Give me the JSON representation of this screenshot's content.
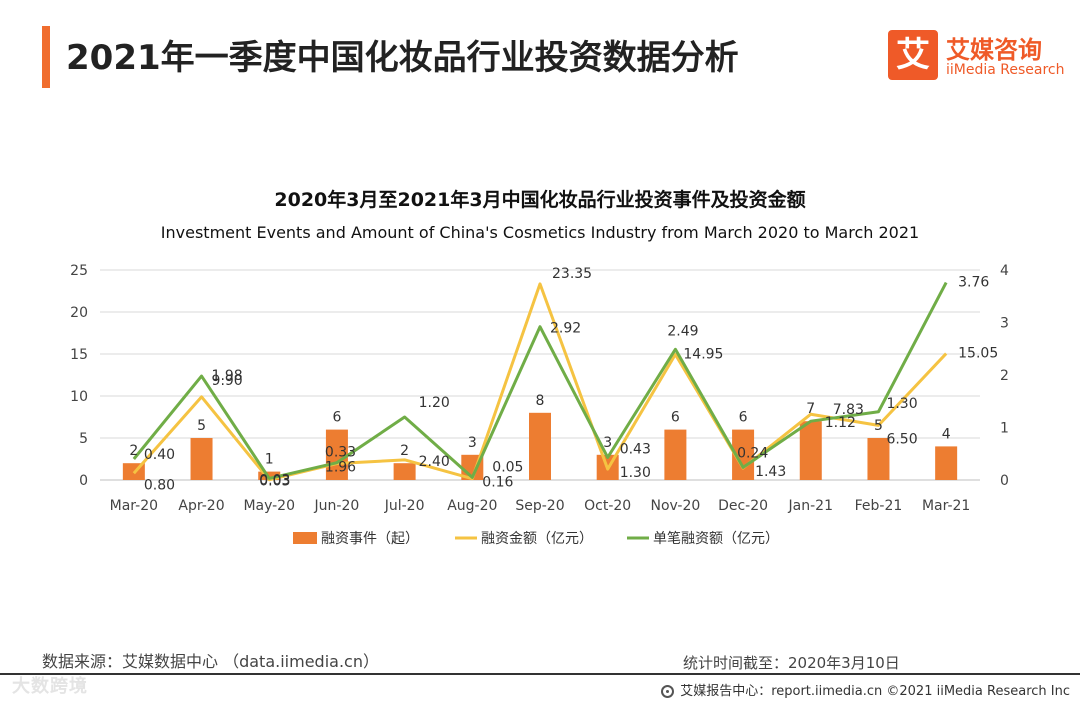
{
  "header": {
    "title": "2021年一季度中国化妆品行业投资数据分析",
    "accent_color": "#f06d2e"
  },
  "logo": {
    "mark": "艾",
    "name_cn": "艾媒咨询",
    "name_en": "iiMedia Research",
    "color": "#ef5a28"
  },
  "chart_data": {
    "type": "bar+line",
    "title": "2020年3月至2021年3月中国化妆品行业投资事件及投资金额",
    "subtitle": "Investment Events and Amount of China's Cosmetics Industry from March 2020 to March 2021",
    "categories": [
      "Mar-20",
      "Apr-20",
      "May-20",
      "Jun-20",
      "Jul-20",
      "Aug-20",
      "Sep-20",
      "Oct-20",
      "Nov-20",
      "Dec-20",
      "Jan-21",
      "Feb-21",
      "Mar-21"
    ],
    "left_axis": {
      "ylim": [
        0,
        25
      ],
      "ticks": [
        "0",
        "5",
        "10",
        "15",
        "20",
        "25"
      ]
    },
    "right_axis": {
      "ylim": [
        0,
        4
      ],
      "ticks": [
        "0",
        "1",
        "2",
        "3",
        "4"
      ]
    },
    "series": [
      {
        "name": "融资事件（起）",
        "type": "bar",
        "axis": "left",
        "color": "#ed7d31",
        "values": [
          2,
          5,
          1,
          6,
          2,
          3,
          8,
          3,
          6,
          6,
          7,
          5,
          4
        ],
        "labels": [
          "2",
          "5",
          "1",
          "6",
          "2",
          "3",
          "8",
          "3",
          "6",
          "6",
          "7",
          "5",
          "4"
        ]
      },
      {
        "name": "融资金额（亿元）",
        "type": "line",
        "axis": "left",
        "color": "#f5c342",
        "values": [
          0.8,
          9.9,
          0.03,
          1.96,
          2.4,
          0.16,
          23.35,
          1.3,
          14.95,
          1.43,
          7.83,
          6.5,
          15.05
        ],
        "labels": [
          "0.80",
          "9.90",
          "0.03",
          "1.96",
          "2.40",
          "0.16",
          "23.35",
          "1.30",
          "14.95",
          "1.43",
          "7.83",
          "6.50",
          "15.05"
        ]
      },
      {
        "name": "单笔融资额（亿元）",
        "type": "line",
        "axis": "right",
        "color": "#70ad47",
        "values": [
          0.4,
          1.98,
          0.03,
          0.33,
          1.2,
          0.05,
          2.92,
          0.43,
          2.49,
          0.24,
          1.12,
          1.3,
          3.76
        ],
        "labels": [
          "0.40",
          "1.98",
          "0.03",
          "0.33",
          "1.20",
          "0.05",
          "2.92",
          "0.43",
          "2.49",
          "0.24",
          "1.12",
          "1.30",
          "3.76"
        ]
      }
    ],
    "legend_position": "bottom",
    "grid": true
  },
  "footer": {
    "source": "数据来源：艾媒数据中心 （data.iimedia.cn）",
    "cutoff": "统计时间截至：2020年3月10日",
    "report_center": "艾媒报告中心：report.iimedia.cn  ©2021  iiMedia Research  Inc",
    "watermark": "大数跨境"
  }
}
